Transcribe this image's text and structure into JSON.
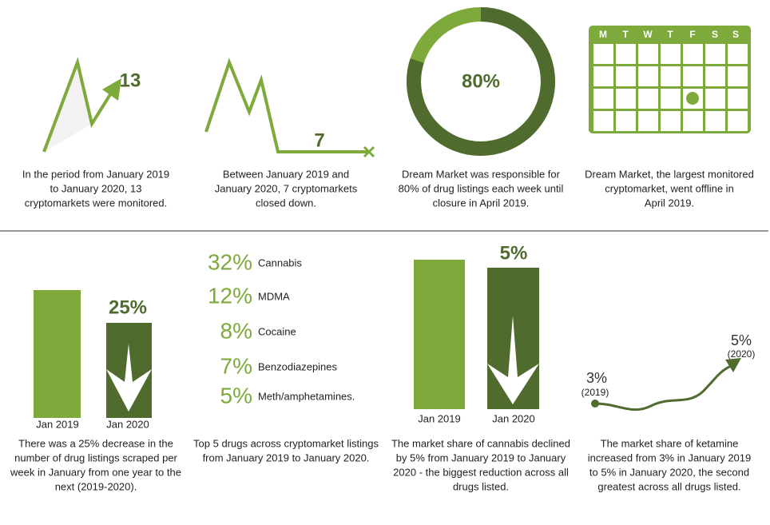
{
  "top": [
    {
      "value": "13",
      "caption": [
        "In the period from January 2019",
        "to January 2020, 13",
        "cryptomarkets were monitored."
      ]
    },
    {
      "value": "7",
      "caption": [
        "Between January 2019 and",
        "January 2020, 7 cryptomarkets",
        "closed down."
      ]
    },
    {
      "donut": {
        "value": 80,
        "label": "80%"
      },
      "caption": [
        "Dream Market was responsible for",
        "80% of drug listings each week until",
        "closure in April 2019."
      ]
    },
    {
      "days": [
        "M",
        "T",
        "W",
        "T",
        "F",
        "S",
        "S"
      ],
      "caption": [
        "Dream Market, the largest monitored",
        "cryptomarket, went offline in",
        "April 2019."
      ]
    }
  ],
  "bottom": [
    {
      "value": "25%",
      "bars": [
        "Jan 2019",
        "Jan 2020"
      ],
      "caption": [
        "There was a 25% decrease in the",
        "number of drug listings scraped per",
        "week in January from one year to the",
        "next (2019-2020)."
      ]
    },
    {
      "drugs": [
        {
          "percent": "32%",
          "name": "Cannabis"
        },
        {
          "percent": "12%",
          "name": "MDMA"
        },
        {
          "percent": "8%",
          "name": "Cocaine"
        },
        {
          "percent": "7%",
          "name": "Benzodiazepines"
        },
        {
          "percent": "5%",
          "name": "Meth/amphetamines."
        }
      ],
      "caption": [
        "Top 5 drugs across cryptomarket listings",
        "from January 2019 to January 2020."
      ]
    },
    {
      "value": "5%",
      "bars": [
        "Jan 2019",
        "Jan 2020"
      ],
      "caption": [
        "The market share of cannabis declined",
        "by 5% from January 2019 to January",
        "2020 - the biggest reduction across all",
        "drugs listed."
      ]
    },
    {
      "start": {
        "value": "3%",
        "year": "(2019)"
      },
      "end": {
        "value": "5%",
        "year": "(2020)"
      },
      "caption": [
        "The market share of ketamine",
        "increased from 3% in January 2019",
        "to 5% in January 2020, the second",
        "greatest across all drugs listed."
      ]
    }
  ]
}
